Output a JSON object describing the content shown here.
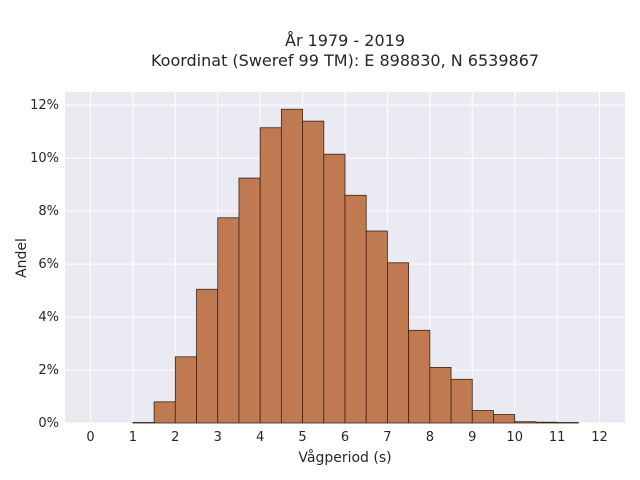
{
  "chart_data": {
    "type": "bar",
    "title_line1": "År 1979 - 2019",
    "title_line2": "Koordinat (Sweref 99 TM): E 898830, N 6539867",
    "xlabel": "Vågperiod (s)",
    "ylabel": "Andel",
    "x_ticks": [
      "0",
      "1",
      "2",
      "3",
      "4",
      "5",
      "6",
      "7",
      "8",
      "9",
      "10",
      "11",
      "12"
    ],
    "y_ticks": [
      "0%",
      "2%",
      "4%",
      "6%",
      "8%",
      "10%",
      "12%"
    ],
    "xlim": [
      -0.6,
      12.6
    ],
    "ylim": [
      0,
      12.5
    ],
    "bin_width": 0.5,
    "bins_start": [
      1.0,
      1.5,
      2.0,
      2.5,
      3.0,
      3.5,
      4.0,
      4.5,
      5.0,
      5.5,
      6.0,
      6.5,
      7.0,
      7.5,
      8.0,
      8.5,
      9.0,
      9.5,
      10.0,
      10.5,
      11.0
    ],
    "values": [
      0.02,
      0.8,
      2.5,
      5.05,
      7.75,
      9.25,
      11.15,
      11.85,
      11.4,
      10.15,
      8.6,
      7.25,
      6.05,
      3.5,
      2.1,
      1.65,
      0.47,
      0.32,
      0.05,
      0.03,
      0.02
    ],
    "grid": true,
    "colors": {
      "bar_fill": "#c07a52",
      "bar_edge": "#3a2418",
      "plot_bg": "#eaeaf2",
      "grid": "#ffffff"
    }
  }
}
